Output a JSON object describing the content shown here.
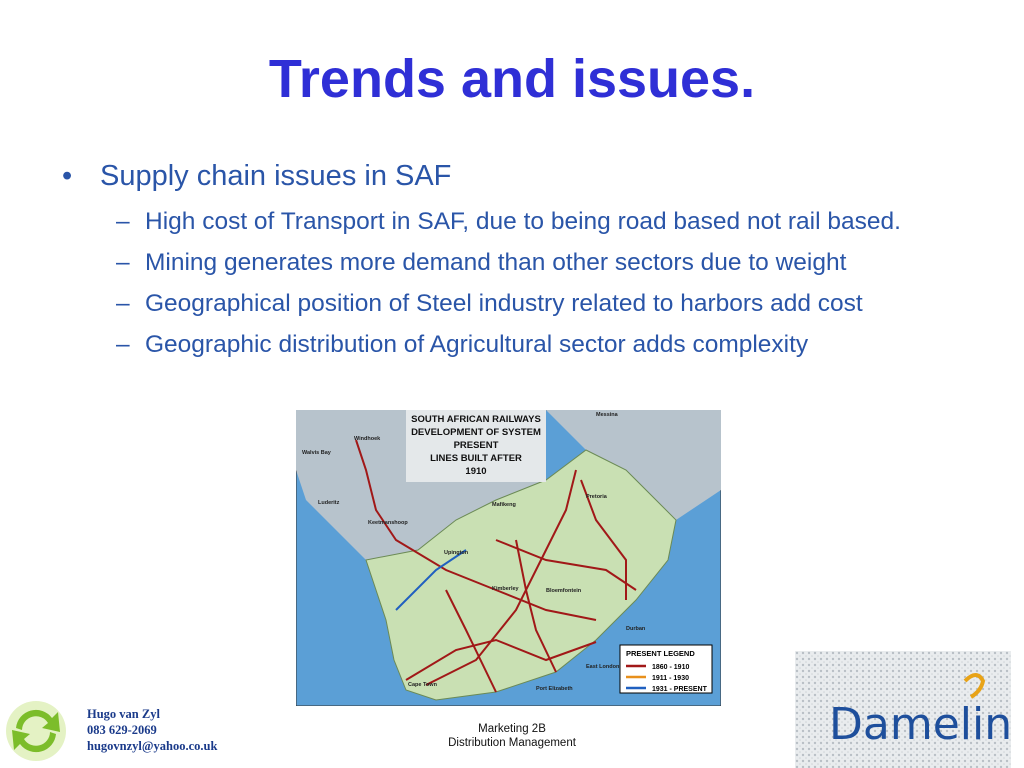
{
  "title": "Trends and issues.",
  "bullets": [
    {
      "text": "Supply chain issues in SAF",
      "sub": [
        "High cost of Transport in SAF, due to being road based not rail based.",
        "Mining generates more demand than other sectors due to weight",
        "Geographical position of Steel industry related to harbors add cost",
        "Geographic distribution of Agricultural sector adds complexity"
      ]
    }
  ],
  "map": {
    "title_lines": [
      "SOUTH AFRICAN RAILWAYS",
      "DEVELOPMENT OF SYSTEM",
      "PRESENT",
      "LINES BUILT AFTER",
      "1910"
    ],
    "legend": {
      "title": "PRESENT LEGEND",
      "items": [
        "1860 - 1910",
        "1911 - 1930",
        "1931 - PRESENT"
      ]
    },
    "places": [
      "Windhoek",
      "Walvis Bay",
      "Keetmanshoop",
      "Luderitz",
      "Upington",
      "Kimberley",
      "Bloemfontein",
      "Pretoria",
      "Durban",
      "Port Elizabeth",
      "East London",
      "Cape Town",
      "Mafikeng",
      "Messina"
    ]
  },
  "footer": {
    "contact": [
      "Hugo van Zyl",
      "083 629-2069",
      "hugovnzyl@yahoo.co.uk"
    ],
    "center": [
      "Marketing 2B",
      "Distribution Management"
    ],
    "logo": "Damelin"
  }
}
